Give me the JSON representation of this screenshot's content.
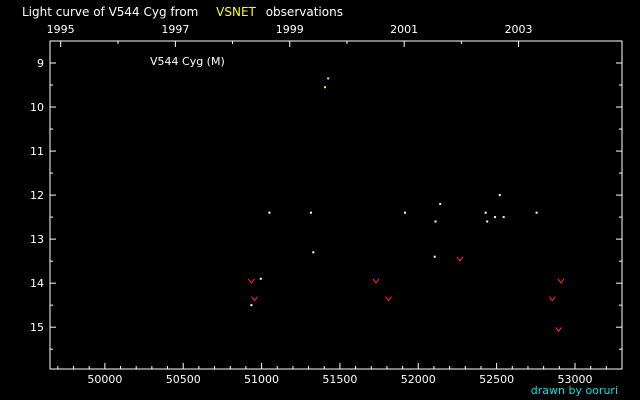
{
  "chart_data": {
    "type": "scatter",
    "title_prefix": "Light curve of V544 Cyg from",
    "title_source": "VSNET",
    "title_suffix": "observations",
    "annotation": "V544 Cyg (M)",
    "credit": "drawn by ooruri",
    "xlim": [
      49650,
      53300
    ],
    "ylim": [
      15.95,
      8.5
    ],
    "x_ticks": [
      50000,
      50500,
      51000,
      51500,
      52000,
      52500,
      53000
    ],
    "x_tick_labels": [
      "50000",
      "50500",
      "51000",
      "51500",
      "52000",
      "52500",
      "53000"
    ],
    "y_ticks": [
      9,
      10,
      11,
      12,
      13,
      14,
      15
    ],
    "y_tick_labels": [
      "9",
      "10",
      "11",
      "12",
      "13",
      "14",
      "15"
    ],
    "top_axis": {
      "labels": [
        "1995",
        "1997",
        "1999",
        "2001",
        "2003"
      ],
      "positions": [
        49718,
        50450,
        51180,
        51910,
        52640
      ]
    },
    "colors": {
      "background": "#000000",
      "axes": "#ffffff",
      "source_text": "#ffff00",
      "credit": "#00e5e5"
    },
    "series": [
      {
        "marker": "dot",
        "color": "#ffffff",
        "points": [
          [
            50935,
            14.5
          ],
          [
            50995,
            13.9
          ],
          [
            51050,
            12.4
          ],
          [
            51315,
            12.4
          ],
          [
            51330,
            13.3
          ],
          [
            51915,
            12.4
          ],
          [
            52105,
            13.4
          ],
          [
            52110,
            12.6
          ],
          [
            52140,
            12.2
          ],
          [
            52430,
            12.4
          ],
          [
            52440,
            12.6
          ],
          [
            52490,
            12.5
          ],
          [
            52520,
            12.0
          ],
          [
            52545,
            12.5
          ],
          [
            52755,
            12.4
          ]
        ]
      },
      {
        "marker": "dot",
        "color": "#ffff00",
        "points": [
          [
            51405,
            9.55
          ],
          [
            51425,
            9.35
          ]
        ]
      },
      {
        "marker": "v",
        "color": "#ff2020",
        "points": [
          [
            50935,
            13.95
          ],
          [
            50955,
            14.35
          ],
          [
            51730,
            13.95
          ],
          [
            51810,
            14.35
          ],
          [
            52265,
            13.45
          ],
          [
            52855,
            14.35
          ],
          [
            52895,
            15.05
          ],
          [
            52910,
            13.95
          ]
        ]
      }
    ]
  }
}
